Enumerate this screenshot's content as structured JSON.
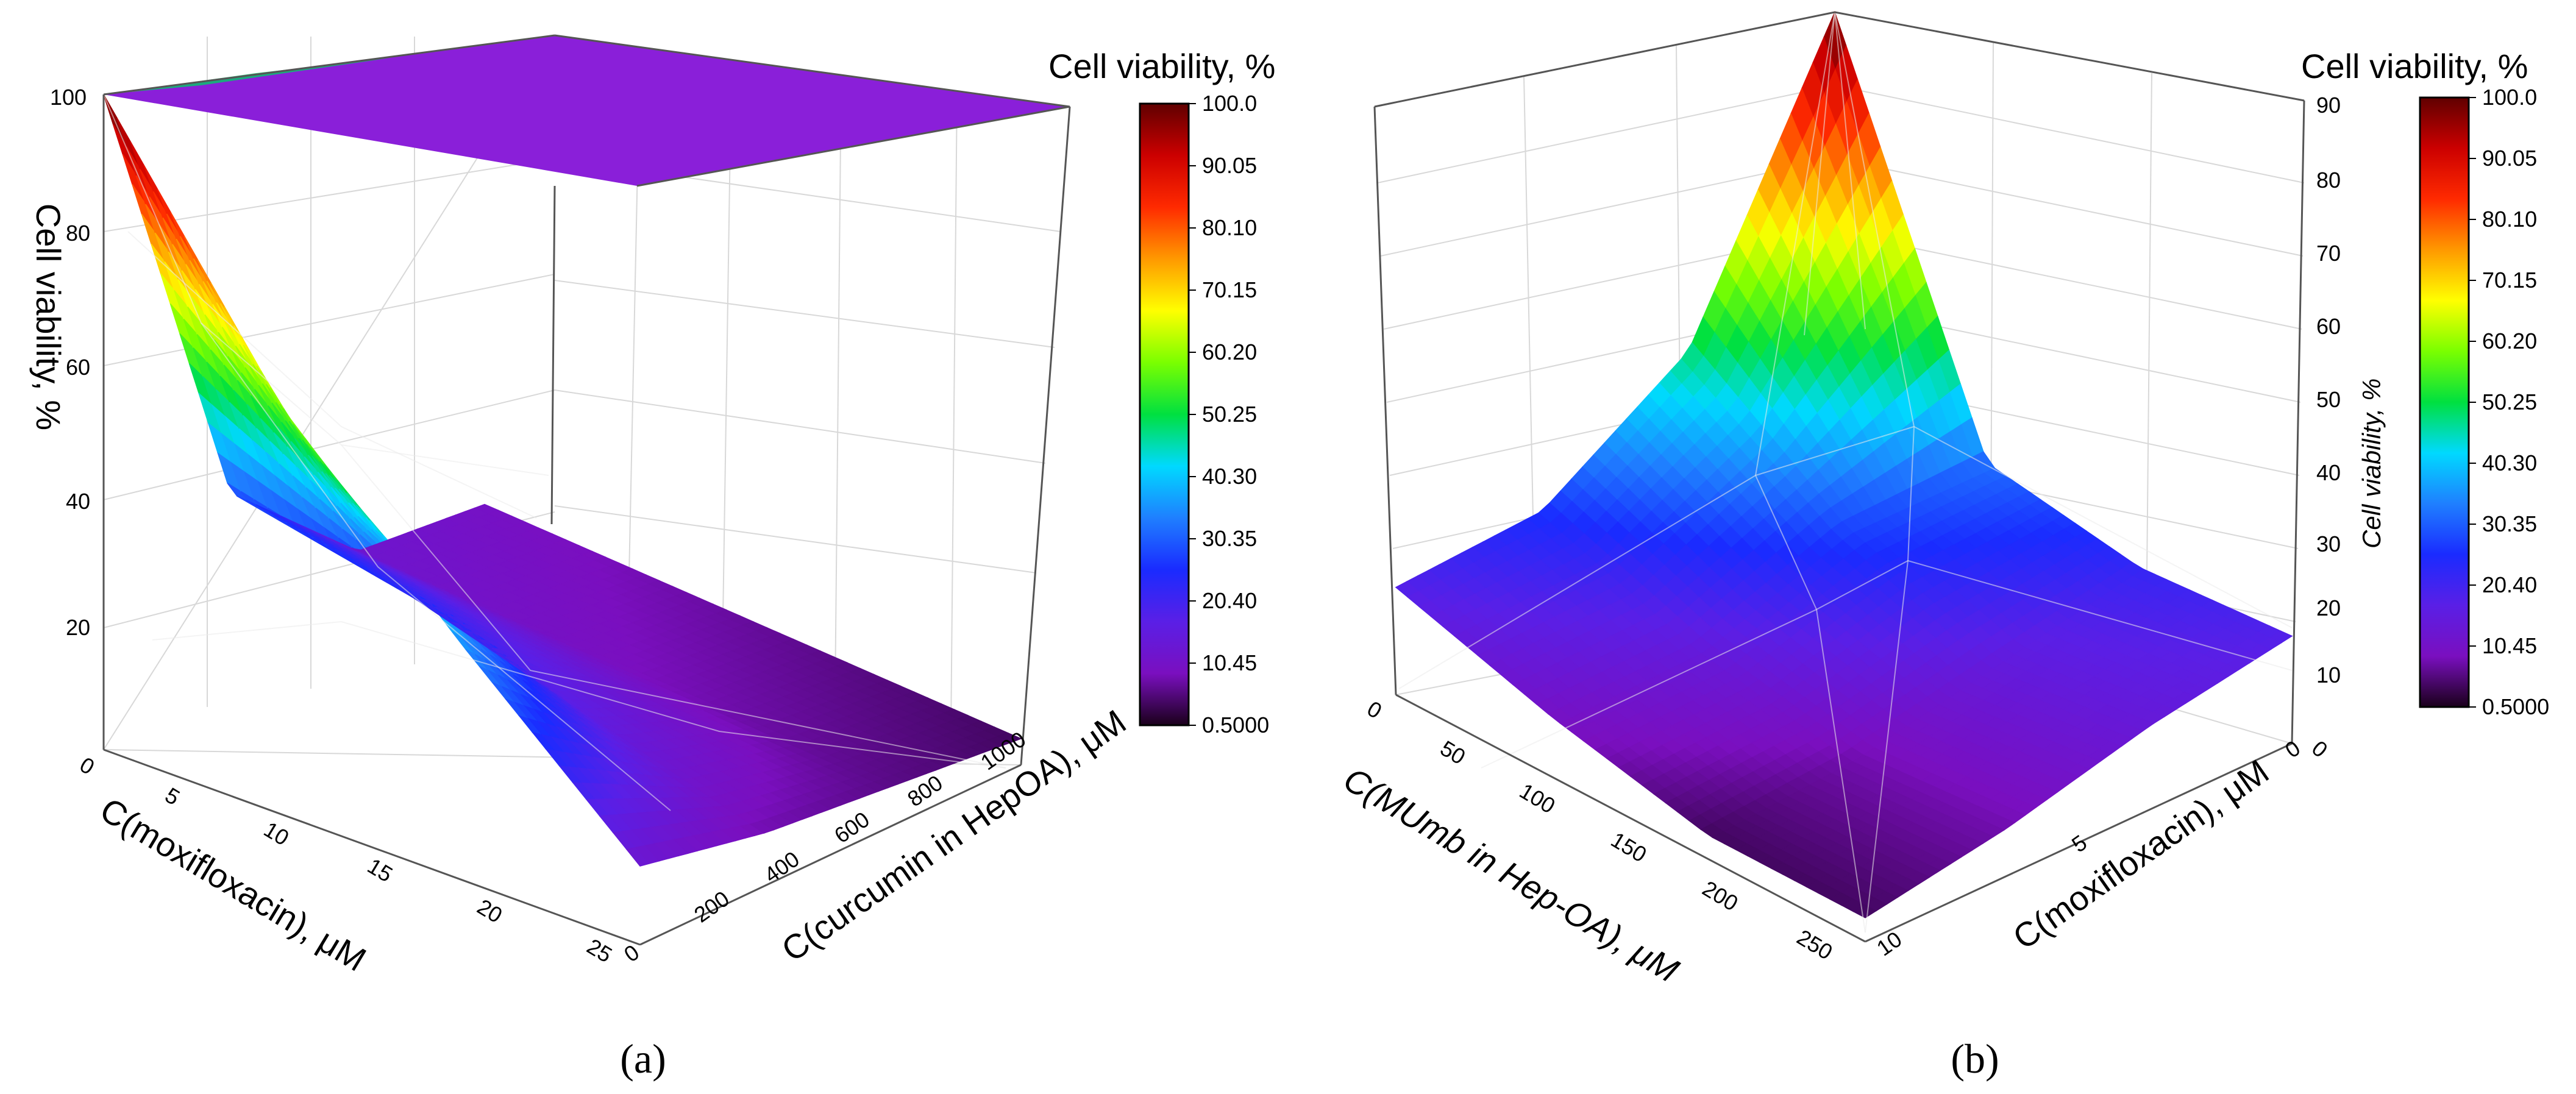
{
  "colormap": {
    "stops": [
      "#1a001a",
      "#7a0fbf",
      "#5a1fe6",
      "#1a2bff",
      "#1f7fff",
      "#00d9ff",
      "#00e040",
      "#7aff00",
      "#ffff00",
      "#ff9900",
      "#ff2a00",
      "#cc0000",
      "#600000"
    ],
    "outline": "#000000"
  },
  "chart_data": [
    {
      "panel": "(a)",
      "type": "surface3d",
      "xlabel": "C(moxifloxacin), μM",
      "ylabel": "C(curcumin in HepOA), μM",
      "zlabel": "Cell viability, %",
      "x_ticks": [
        "0",
        "5",
        "10",
        "15",
        "20",
        "25"
      ],
      "y_ticks": [
        "0",
        "200",
        "400",
        "600",
        "800",
        "1000"
      ],
      "z_ticks": [
        "20",
        "40",
        "60",
        "80",
        "100"
      ],
      "x": [
        0,
        5,
        12.5,
        25
      ],
      "y": [
        0,
        250,
        500,
        1000
      ],
      "z": [
        [
          100,
          30,
          12,
          10
        ],
        [
          62,
          24,
          10,
          8
        ],
        [
          36,
          16,
          8,
          6
        ],
        [
          12,
          8,
          6,
          4
        ]
      ],
      "colorbar_title": "Cell viability, %",
      "colorbar_ticks": [
        "100.0",
        "90.05",
        "80.10",
        "70.15",
        "60.20",
        "50.25",
        "40.30",
        "30.35",
        "20.40",
        "10.45",
        "0.5000"
      ],
      "colorbar_range": [
        0.5,
        100
      ]
    },
    {
      "panel": "(b)",
      "type": "surface3d",
      "xlabel": "C(MUmb in Hep-OA), μM",
      "ylabel": "C(moxifloxacin), μM",
      "zlabel": "Cell viability, %",
      "x_ticks": [
        "0",
        "50",
        "100",
        "150",
        "200",
        "250"
      ],
      "y_ticks": [
        "0",
        "5",
        "10"
      ],
      "z_ticks": [
        "0",
        "10",
        "20",
        "30",
        "40",
        "50",
        "60",
        "70",
        "80",
        "90"
      ],
      "x": [
        0,
        62.5,
        125,
        250
      ],
      "y": [
        0,
        2.5,
        5,
        10
      ],
      "z": [
        [
          100,
          32,
          22,
          18
        ],
        [
          48,
          28,
          15,
          14
        ],
        [
          26,
          15,
          8,
          8
        ],
        [
          18,
          10,
          4,
          4
        ]
      ],
      "colorbar_title": "Cell viability, %",
      "colorbar_ticks": [
        "100.0",
        "90.05",
        "80.10",
        "70.15",
        "60.20",
        "50.25",
        "40.30",
        "30.35",
        "20.40",
        "10.45",
        "0.5000"
      ],
      "colorbar_range": [
        0.5,
        100
      ]
    }
  ]
}
